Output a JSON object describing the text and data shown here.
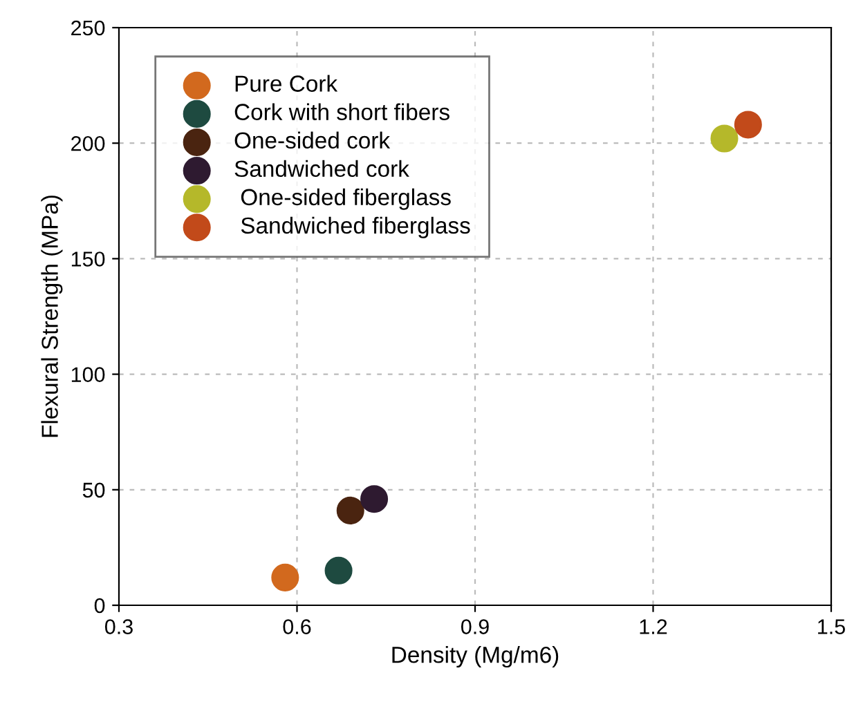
{
  "chart_data": {
    "type": "scatter",
    "xlabel": "Density (Mg/m6)",
    "ylabel": "Flexural Strength (MPa)",
    "xlim": [
      0.3,
      1.5
    ],
    "xticks": [
      0.3,
      0.6,
      0.9,
      1.2,
      1.5
    ],
    "ylim": [
      0,
      250
    ],
    "yticks": [
      0,
      50,
      100,
      150,
      200,
      250
    ],
    "grid": true,
    "legend": "top left",
    "marker": "circle",
    "series": [
      {
        "name": "Pure Cork",
        "color": "#d2691e",
        "x": [
          0.58
        ],
        "values": [
          12
        ]
      },
      {
        "name": "Cork with short fibers",
        "color": "#1e4a40",
        "x": [
          0.67
        ],
        "values": [
          15
        ]
      },
      {
        "name": "One-sided cork",
        "color": "#4a2410",
        "x": [
          0.69
        ],
        "values": [
          41
        ]
      },
      {
        "name": "Sandwiched cork",
        "color": "#2e1a30",
        "x": [
          0.73
        ],
        "values": [
          46
        ]
      },
      {
        "name": " One-sided fiberglass",
        "color": "#b5b82a",
        "x": [
          1.32
        ],
        "values": [
          202
        ]
      },
      {
        "name": " Sandwiched fiberglass",
        "color": "#c24a1a",
        "x": [
          1.36
        ],
        "values": [
          208
        ]
      }
    ]
  }
}
